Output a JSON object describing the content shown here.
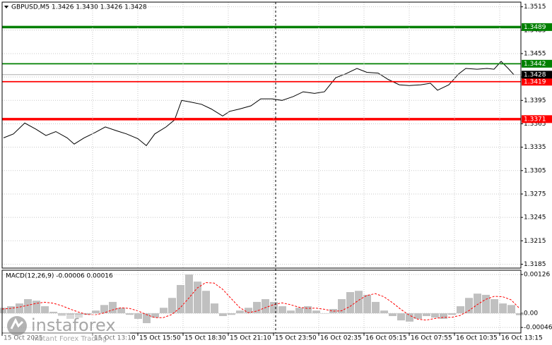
{
  "chart_data": [
    {
      "type": "line",
      "title": "GBPUSD,M5  1.3426 1.3430 1.3426 1.3428",
      "color": "#000000",
      "x": [
        1,
        8,
        16,
        24,
        31,
        38,
        46,
        51,
        58,
        66,
        73,
        81,
        88,
        96,
        102,
        108,
        116,
        122,
        127,
        133,
        141,
        148,
        156,
        161,
        168,
        176,
        183,
        191,
        198,
        206,
        213,
        221,
        228,
        236,
        243,
        251,
        258,
        266,
        273,
        281,
        288,
        296,
        303,
        308,
        316,
        323,
        328,
        336,
        343,
        348,
        353,
        358,
        362
      ],
      "values": [
        1.3347,
        1.3352,
        1.3366,
        1.3358,
        1.335,
        1.3355,
        1.3347,
        1.3339,
        1.3347,
        1.3354,
        1.3361,
        1.3356,
        1.3352,
        1.3346,
        1.3337,
        1.3352,
        1.3361,
        1.337,
        1.3395,
        1.3393,
        1.339,
        1.3384,
        1.3375,
        1.3381,
        1.3384,
        1.3388,
        1.3397,
        1.3397,
        1.3395,
        1.34,
        1.3406,
        1.3404,
        1.3406,
        1.3424,
        1.3429,
        1.3436,
        1.3431,
        1.343,
        1.3422,
        1.3415,
        1.3414,
        1.3415,
        1.3417,
        1.3408,
        1.3415,
        1.3429,
        1.3436,
        1.3435,
        1.3436,
        1.3435,
        1.3445,
        1.3436,
        1.3428
      ],
      "xlim": [
        0,
        367
      ],
      "ylim": [
        1.318,
        1.3521
      ],
      "yticks": [
        1.3515,
        1.3485,
        1.3455,
        1.3425,
        1.3395,
        1.3365,
        1.3335,
        1.3305,
        1.3275,
        1.3245,
        1.3215,
        1.3185
      ],
      "grid": true,
      "levels": [
        {
          "value": 1.3489,
          "color": "#008000"
        },
        {
          "value": 1.3442,
          "color": "#008000"
        },
        {
          "value": 1.3419,
          "color": "#ff0000"
        },
        {
          "value": 1.3371,
          "color": "#ff0000"
        }
      ],
      "last_price": 1.3428
    },
    {
      "type": "macd",
      "title": "MACD(12,26,9) -0.00006 0.00016",
      "x": [
        0,
        6,
        12,
        18,
        24,
        30,
        36,
        42,
        48,
        54,
        60,
        66,
        72,
        78,
        84,
        90,
        96,
        102,
        108,
        114,
        120,
        126,
        132,
        138,
        144,
        150,
        156,
        162,
        168,
        174,
        180,
        186,
        192,
        198,
        204,
        210,
        216,
        222,
        228,
        234,
        240,
        246,
        252,
        258,
        264,
        270,
        276,
        282,
        288,
        294,
        300,
        306,
        312,
        318,
        324,
        330,
        336,
        342,
        348,
        354,
        360,
        366
      ],
      "series": [
        {
          "style": "bar",
          "color": "#c0c0c0",
          "values": [
            0.00018,
            0.00023,
            0.00032,
            0.00046,
            0.00041,
            0.00023,
            5e-05,
            -9e-05,
            -0.00018,
            -0.00014,
            -5e-05,
            9e-05,
            0.00027,
            0.00037,
            0.00018,
            -5e-05,
            -0.00018,
            -0.00032,
            -0.00014,
            0.00018,
            0.0005,
            0.00092,
            0.00126,
            0.00103,
            0.00073,
            0.00032,
            -9e-05,
            -5e-05,
            9e-05,
            0.00018,
            0.00037,
            0.00046,
            0.00037,
            0.00023,
            9e-05,
            0.00018,
            0.00023,
            9e-05,
            0,
            0.00014,
            0.00046,
            0.00069,
            0.00073,
            0.0006,
            0.00037,
            9e-05,
            -9e-05,
            -0.00023,
            -0.00027,
            -0.00018,
            -9e-05,
            -0.00014,
            -0.00018,
            -5e-05,
            0.00023,
            0.0005,
            0.00064,
            0.0006,
            0.00046,
            0.00032,
            0.00027,
            -6e-05
          ]
        },
        {
          "style": "dashed",
          "color": "#ff0000",
          "values": [
            0.00014,
            0.00016,
            0.0002,
            0.00026,
            0.00032,
            0.00036,
            0.00033,
            0.00025,
            0.00014,
            4e-05,
            -4e-05,
            -5e-05,
            1e-05,
            0.00011,
            0.00018,
            0.00016,
            8e-05,
            -4e-05,
            -0.00014,
            -0.00014,
            -4e-05,
            0.00018,
            0.00049,
            0.00082,
            0.001,
            0.00098,
            0.00078,
            0.00048,
            0.00019,
            2e-05,
            7e-05,
            0.00018,
            0.00028,
            0.00034,
            0.00028,
            0.0002,
            0.00016,
            0.00017,
            0.00013,
            7e-05,
            8e-05,
            0.00022,
            0.00042,
            0.00058,
            0.00064,
            0.00054,
            0.00035,
            0.00013,
            -6e-05,
            -0.00019,
            -0.00022,
            -0.00017,
            -0.00013,
            -0.00013,
            -7e-05,
            8e-05,
            0.00028,
            0.00045,
            0.00055,
            0.00054,
            0.00044,
            0.00016
          ]
        }
      ],
      "xlim": [
        0,
        367
      ],
      "ylim": [
        -0.00064,
        0.0014
      ],
      "yticks": [
        0.00126,
        {
          "value": 0,
          "label": "0.00"
        },
        -0.00046
      ],
      "xticks": [
        {
          "value": 0,
          "label": "15 Oct 2025"
        },
        {
          "value": 64,
          "label": "15 Oct 13:10"
        },
        {
          "value": 96,
          "label": "15 Oct 15:50"
        },
        {
          "value": 128,
          "label": "15 Oct 18:30"
        },
        {
          "value": 160,
          "label": "15 Oct 21:10"
        },
        {
          "value": 192,
          "label": "15 Oct 23:50"
        },
        {
          "value": 224,
          "label": "16 Oct 02:35"
        },
        {
          "value": 256,
          "label": "16 Oct 05:15"
        },
        {
          "value": 288,
          "label": "16 Oct 07:55"
        },
        {
          "value": 320,
          "label": "16 Oct 10:35"
        },
        {
          "value": 352,
          "label": "16 Oct 13:15"
        }
      ],
      "grid": true
    }
  ],
  "watermark": {
    "brand": "instaforex",
    "tagline": "Instant Forex Trading"
  }
}
